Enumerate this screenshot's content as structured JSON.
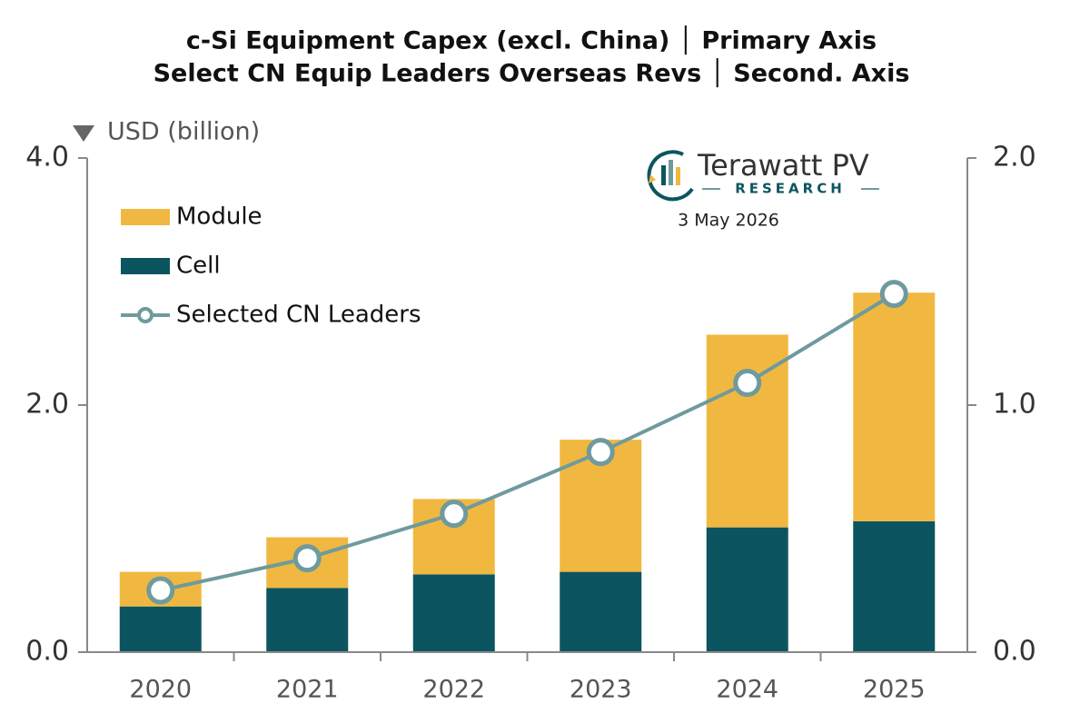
{
  "chart_data": {
    "type": "bar",
    "title": "c-Si Equipment Capex (excl. China) │ Primary Axis",
    "subtitle": "Select CN Equip Leaders Overseas Revs │ Second. Axis",
    "y_axis_label": "USD (billion)",
    "annotations": [
      "Terawatt PV",
      "RESEARCH",
      "3 May 2026"
    ],
    "categories": [
      "2020",
      "2021",
      "2022",
      "2023",
      "2024",
      "2025"
    ],
    "series": [
      {
        "name": "Module",
        "color": "#f0b840",
        "values": [
          0.28,
          0.41,
          0.61,
          1.07,
          1.56,
          1.85
        ]
      },
      {
        "name": "Cell",
        "color": "#0c5560",
        "values": [
          0.37,
          0.52,
          0.63,
          0.65,
          1.01,
          1.06
        ]
      },
      {
        "name": "Selected CN Leaders",
        "color": "#6f9a9e",
        "type": "line",
        "axis": "y2",
        "values": [
          0.25,
          0.38,
          0.56,
          0.81,
          1.09,
          1.45
        ]
      }
    ],
    "ylim": [
      0,
      4
    ],
    "yticks": [
      {
        "value": 0,
        "label": "0.0"
      },
      {
        "value": 2,
        "label": "2.0"
      },
      {
        "value": 4,
        "label": "4.0"
      }
    ],
    "y2lim": [
      0,
      2
    ],
    "y2ticks": [
      {
        "value": 0,
        "label": "0.0"
      },
      {
        "value": 1,
        "label": "1.0"
      },
      {
        "value": 2,
        "label": "2.0"
      }
    ],
    "stacked": true
  }
}
